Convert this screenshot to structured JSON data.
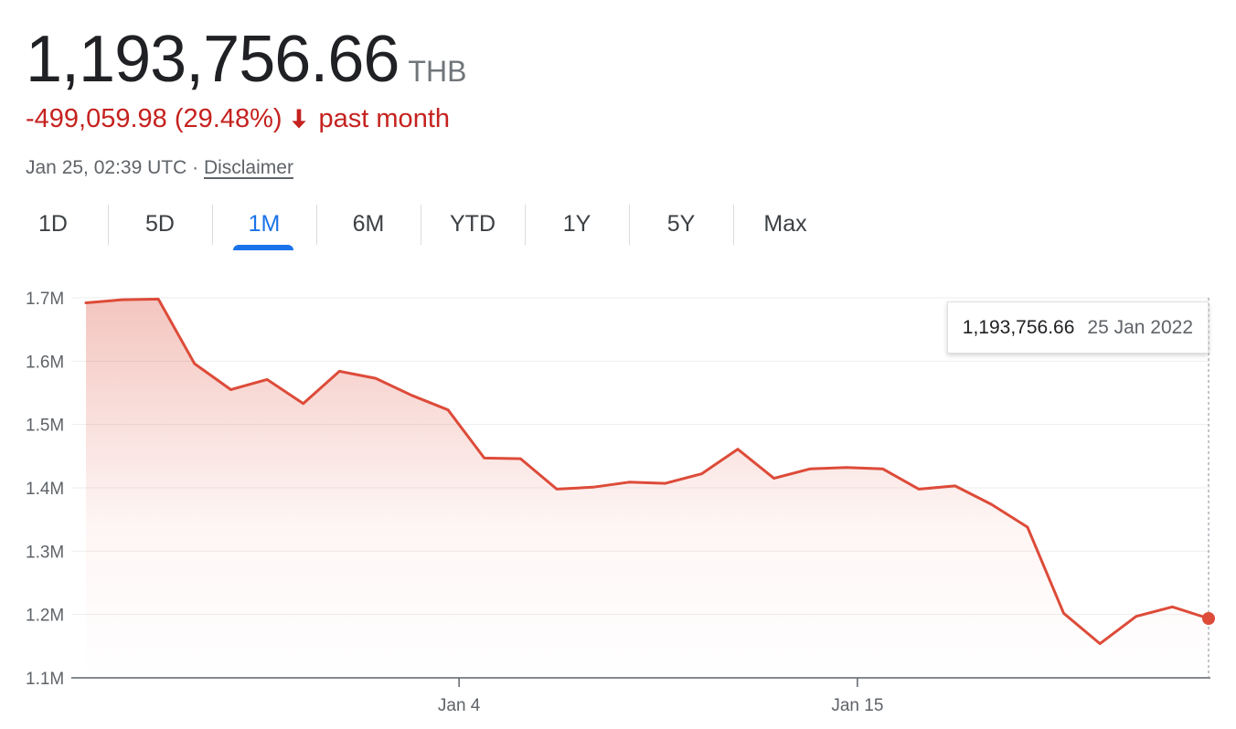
{
  "price": {
    "value": "1,193,756.66",
    "currency": "THB",
    "change": "-499,059.98 (29.48%)",
    "period": "past month",
    "trend": "down",
    "timestamp": "Jan 25, 02:39 UTC · ",
    "disclaimer": "Disclaimer"
  },
  "range_tabs": [
    {
      "label": "1D"
    },
    {
      "label": "5D"
    },
    {
      "label": "1M",
      "active": true
    },
    {
      "label": "6M"
    },
    {
      "label": "YTD"
    },
    {
      "label": "1Y"
    },
    {
      "label": "5Y"
    },
    {
      "label": "Max"
    }
  ],
  "tooltip": {
    "value": "1,193,756.66",
    "date": "25 Jan 2022"
  },
  "colors": {
    "line": "#dd4b39",
    "negative": "#c5221f",
    "accent": "#1a73e8"
  },
  "chart_data": {
    "type": "area",
    "y_ticks": [
      1100000,
      1200000,
      1300000,
      1400000,
      1500000,
      1600000,
      1700000
    ],
    "y_tick_labels": [
      "1.1M",
      "1.2M",
      "1.3M",
      "1.4M",
      "1.5M",
      "1.6M",
      "1.7M"
    ],
    "ylim": [
      1100000,
      1700000
    ],
    "x_ticks": [
      {
        "label": "Jan 4",
        "index": 10
      },
      {
        "label": "Jan 15",
        "index": 21
      }
    ],
    "grid": true,
    "values": [
      1692000,
      1697000,
      1698000,
      1596000,
      1555000,
      1571000,
      1533000,
      1584000,
      1573000,
      1546000,
      1523000,
      1447000,
      1446000,
      1398000,
      1401000,
      1409000,
      1407000,
      1422000,
      1461000,
      1415000,
      1430000,
      1432000,
      1430000,
      1398000,
      1403000,
      1374000,
      1338000,
      1202000,
      1154000,
      1197000,
      1212000,
      1193757
    ]
  }
}
